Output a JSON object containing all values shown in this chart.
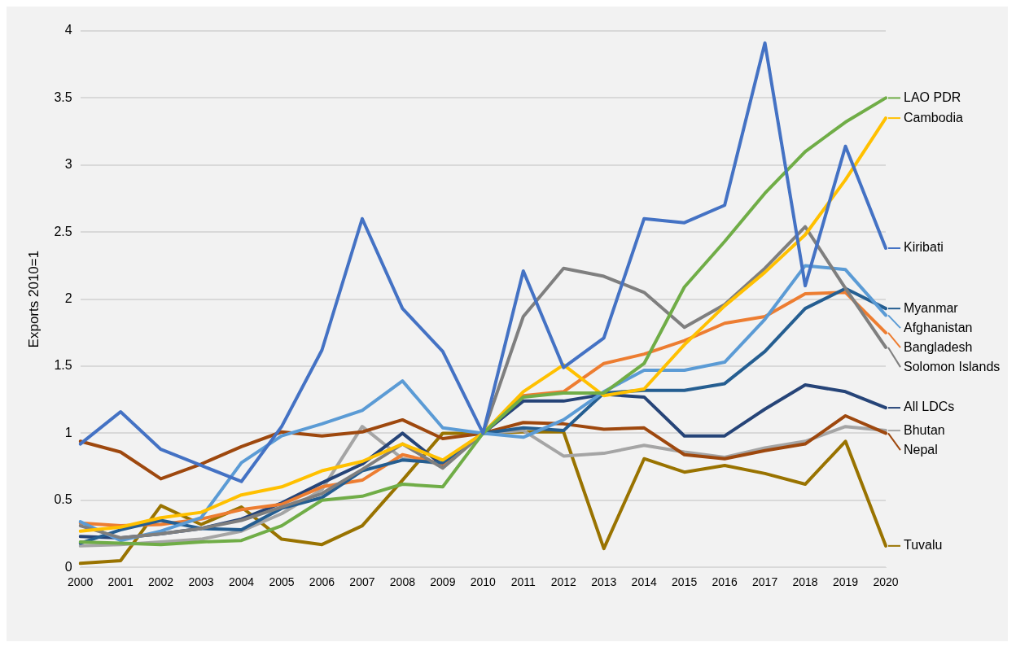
{
  "chart_data": {
    "type": "line",
    "ylabel": "Exports 2010=1",
    "categories": [
      "2000",
      "2001",
      "2002",
      "2003",
      "2004",
      "2005",
      "2006",
      "2007",
      "2008",
      "2009",
      "2010",
      "2011",
      "2012",
      "2013",
      "2014",
      "2015",
      "2016",
      "2017",
      "2018",
      "2019",
      "2020"
    ],
    "ylim": [
      0,
      4
    ],
    "yticks": [
      0,
      0.5,
      1,
      1.5,
      2,
      2.5,
      3,
      3.5,
      4
    ],
    "grid": "y",
    "legend": "right",
    "line_style": "solid",
    "marker": "none",
    "series": [
      {
        "name": "Kiribati",
        "color": "#4472c4",
        "values": [
          0.92,
          1.16,
          0.88,
          0.76,
          0.64,
          1.05,
          1.62,
          2.6,
          1.93,
          1.61,
          1.0,
          2.21,
          1.49,
          1.71,
          2.6,
          2.57,
          2.7,
          3.91,
          2.1,
          3.14,
          2.38
        ]
      },
      {
        "name": "LAO PDR",
        "color": "#70ad47",
        "values": [
          0.19,
          0.18,
          0.17,
          0.19,
          0.2,
          0.31,
          0.5,
          0.53,
          0.62,
          0.6,
          1.0,
          1.27,
          1.3,
          1.3,
          1.52,
          2.09,
          2.43,
          2.79,
          3.1,
          3.32,
          3.5
        ]
      },
      {
        "name": "Cambodia",
        "color": "#ffc000",
        "values": [
          0.27,
          0.3,
          0.37,
          0.41,
          0.54,
          0.6,
          0.72,
          0.79,
          0.92,
          0.8,
          1.0,
          1.31,
          1.51,
          1.28,
          1.33,
          1.66,
          1.95,
          2.2,
          2.48,
          2.89,
          3.35
        ]
      },
      {
        "name": "Solomon Islands",
        "color": "#7f7f7f",
        "values": [
          0.31,
          0.22,
          0.25,
          0.29,
          0.35,
          0.45,
          0.55,
          0.73,
          0.92,
          0.74,
          1.0,
          1.87,
          2.23,
          2.17,
          2.05,
          1.79,
          1.96,
          2.23,
          2.54,
          2.08,
          1.64
        ]
      },
      {
        "name": "Afghanistan",
        "color": "#5b9bd5",
        "values": [
          0.34,
          0.2,
          0.27,
          0.37,
          0.78,
          0.98,
          1.07,
          1.17,
          1.39,
          1.04,
          1.0,
          0.97,
          1.1,
          1.31,
          1.47,
          1.47,
          1.53,
          1.85,
          2.25,
          2.22,
          1.88
        ]
      },
      {
        "name": "Myanmar",
        "color": "#255e91",
        "values": [
          0.18,
          0.28,
          0.35,
          0.29,
          0.28,
          0.44,
          0.52,
          0.72,
          0.8,
          0.78,
          1.0,
          1.04,
          1.02,
          1.3,
          1.32,
          1.32,
          1.37,
          1.61,
          1.93,
          2.08,
          1.93
        ]
      },
      {
        "name": "Bangladesh",
        "color": "#ed7d31",
        "values": [
          0.33,
          0.31,
          0.32,
          0.36,
          0.43,
          0.47,
          0.6,
          0.65,
          0.84,
          0.77,
          1.0,
          1.28,
          1.31,
          1.52,
          1.59,
          1.69,
          1.82,
          1.87,
          2.04,
          2.05,
          1.75
        ]
      },
      {
        "name": "All LDCs",
        "color": "#264478",
        "values": [
          0.23,
          0.22,
          0.25,
          0.29,
          0.36,
          0.48,
          0.63,
          0.77,
          1.0,
          0.76,
          1.0,
          1.24,
          1.24,
          1.29,
          1.27,
          0.98,
          0.98,
          1.18,
          1.36,
          1.31,
          1.19
        ]
      },
      {
        "name": "Nepal",
        "color": "#9e480e",
        "values": [
          0.94,
          0.86,
          0.66,
          0.77,
          0.9,
          1.01,
          0.98,
          1.01,
          1.1,
          0.96,
          1.0,
          1.08,
          1.07,
          1.03,
          1.04,
          0.84,
          0.81,
          0.87,
          0.92,
          1.13,
          1.0
        ]
      },
      {
        "name": "Bhutan",
        "color": "#a5a5a5",
        "values": [
          0.16,
          0.17,
          0.19,
          0.21,
          0.27,
          0.4,
          0.58,
          1.05,
          0.81,
          0.77,
          1.0,
          1.02,
          0.83,
          0.85,
          0.91,
          0.86,
          0.82,
          0.89,
          0.94,
          1.05,
          1.02
        ]
      },
      {
        "name": "Tuvalu",
        "color": "#997300",
        "values": [
          0.03,
          0.05,
          0.46,
          0.32,
          0.45,
          0.21,
          0.17,
          0.31,
          0.65,
          1.0,
          1.0,
          1.01,
          1.01,
          0.14,
          0.81,
          0.71,
          0.76,
          0.7,
          0.62,
          0.94,
          0.16
        ]
      }
    ]
  }
}
